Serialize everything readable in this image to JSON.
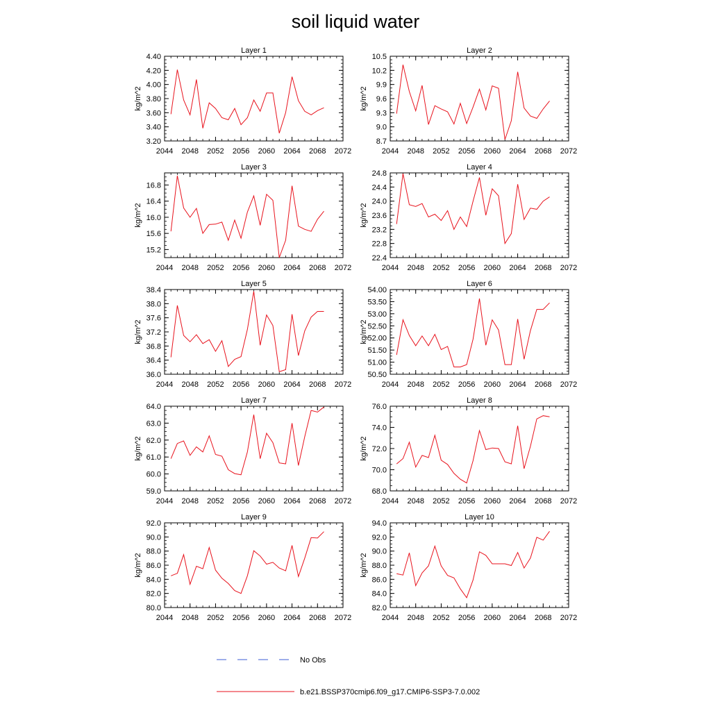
{
  "title": "soil liquid water",
  "colors": {
    "model": "#e8121c",
    "obs": "#3b5bd6",
    "axis": "#000000"
  },
  "legend": {
    "obs_label": "No Obs",
    "model_label": "b.e21.BSSP370cmip6.f09_g17.CMIP6-SSP3-7.0.002"
  },
  "chart_data": [
    {
      "type": "line",
      "title": "Layer 1",
      "ylabel": "kg/m^2",
      "xlim": [
        2044,
        2072
      ],
      "xticks": [
        2044,
        2048,
        2052,
        2056,
        2060,
        2064,
        2068,
        2072
      ],
      "ylim": [
        3.2,
        4.4
      ],
      "yticks": [
        "3.20",
        "3.40",
        "3.60",
        "3.80",
        "4.00",
        "4.20",
        "4.40"
      ],
      "x": [
        2045,
        2046,
        2047,
        2048,
        2049,
        2050,
        2051,
        2052,
        2053,
        2054,
        2055,
        2056,
        2057,
        2058,
        2059,
        2060,
        2061,
        2062,
        2063,
        2064,
        2065,
        2066,
        2067,
        2068,
        2069
      ],
      "series": [
        {
          "values": [
            3.58,
            4.21,
            3.78,
            3.57,
            4.07,
            3.38,
            3.74,
            3.66,
            3.53,
            3.5,
            3.66,
            3.43,
            3.53,
            3.78,
            3.62,
            3.88,
            3.88,
            3.31,
            3.6,
            4.11,
            3.77,
            3.62,
            3.57,
            3.63,
            3.67
          ]
        }
      ]
    },
    {
      "type": "line",
      "title": "Layer 2",
      "ylabel": "kg/m^2",
      "xlim": [
        2044,
        2072
      ],
      "xticks": [
        2044,
        2048,
        2052,
        2056,
        2060,
        2064,
        2068,
        2072
      ],
      "ylim": [
        8.7,
        10.5
      ],
      "yticks": [
        "8.7",
        "9.0",
        "9.3",
        "9.6",
        "9.9",
        "10.2",
        "10.5"
      ],
      "x": [
        2045,
        2046,
        2047,
        2048,
        2049,
        2050,
        2051,
        2052,
        2053,
        2054,
        2055,
        2056,
        2057,
        2058,
        2059,
        2060,
        2061,
        2062,
        2063,
        2064,
        2065,
        2066,
        2067,
        2068,
        2069
      ],
      "series": [
        {
          "values": [
            9.28,
            10.32,
            9.75,
            9.34,
            9.88,
            9.05,
            9.45,
            9.38,
            9.32,
            9.06,
            9.5,
            9.07,
            9.42,
            9.8,
            9.36,
            9.87,
            9.82,
            8.73,
            9.13,
            10.17,
            9.4,
            9.23,
            9.18,
            9.38,
            9.55
          ]
        }
      ]
    },
    {
      "type": "line",
      "title": "Layer 3",
      "ylabel": "kg/m^2",
      "xlim": [
        2044,
        2072
      ],
      "xticks": [
        2044,
        2048,
        2052,
        2056,
        2060,
        2064,
        2068,
        2072
      ],
      "ylim": [
        15.0,
        17.1
      ],
      "yticks": [
        "15.2",
        "15.6",
        "16.0",
        "16.4",
        "16.8"
      ],
      "x": [
        2045,
        2046,
        2047,
        2048,
        2049,
        2050,
        2051,
        2052,
        2053,
        2054,
        2055,
        2056,
        2057,
        2058,
        2059,
        2060,
        2061,
        2062,
        2063,
        2064,
        2065,
        2066,
        2067,
        2068,
        2069
      ],
      "series": [
        {
          "values": [
            15.65,
            17.03,
            16.23,
            16.0,
            16.22,
            15.6,
            15.82,
            15.83,
            15.88,
            15.43,
            15.93,
            15.48,
            16.13,
            16.53,
            15.8,
            16.57,
            16.42,
            15.0,
            15.43,
            16.78,
            15.78,
            15.7,
            15.65,
            15.95,
            16.15
          ]
        }
      ]
    },
    {
      "type": "line",
      "title": "Layer 4",
      "ylabel": "kg/m^2",
      "xlim": [
        2044,
        2072
      ],
      "xticks": [
        2044,
        2048,
        2052,
        2056,
        2060,
        2064,
        2068,
        2072
      ],
      "ylim": [
        22.4,
        24.8
      ],
      "yticks": [
        "22.4",
        "22.8",
        "23.2",
        "23.6",
        "24.0",
        "24.4",
        "24.8"
      ],
      "x": [
        2045,
        2046,
        2047,
        2048,
        2049,
        2050,
        2051,
        2052,
        2053,
        2054,
        2055,
        2056,
        2057,
        2058,
        2059,
        2060,
        2061,
        2062,
        2063,
        2064,
        2065,
        2066,
        2067,
        2068,
        2069
      ],
      "series": [
        {
          "values": [
            23.35,
            24.78,
            23.9,
            23.85,
            23.93,
            23.55,
            23.63,
            23.45,
            23.73,
            23.2,
            23.55,
            23.28,
            24.0,
            24.67,
            23.6,
            24.35,
            24.15,
            22.8,
            23.08,
            24.48,
            23.48,
            23.8,
            23.77,
            24.0,
            24.12
          ]
        }
      ]
    },
    {
      "type": "line",
      "title": "Layer 5",
      "ylabel": "kg/m^2",
      "xlim": [
        2044,
        2072
      ],
      "xticks": [
        2044,
        2048,
        2052,
        2056,
        2060,
        2064,
        2068,
        2072
      ],
      "ylim": [
        36.0,
        38.4
      ],
      "yticks": [
        "36.0",
        "36.4",
        "36.8",
        "37.2",
        "37.6",
        "38.0",
        "38.4"
      ],
      "x": [
        2045,
        2046,
        2047,
        2048,
        2049,
        2050,
        2051,
        2052,
        2053,
        2054,
        2055,
        2056,
        2057,
        2058,
        2059,
        2060,
        2061,
        2062,
        2063,
        2064,
        2065,
        2066,
        2067,
        2068,
        2069
      ],
      "series": [
        {
          "values": [
            36.48,
            37.95,
            37.1,
            36.92,
            37.12,
            36.87,
            36.98,
            36.65,
            36.95,
            36.22,
            36.42,
            36.5,
            37.27,
            38.35,
            36.82,
            37.68,
            37.38,
            36.07,
            36.13,
            37.7,
            36.53,
            37.23,
            37.62,
            37.78,
            37.78
          ]
        }
      ]
    },
    {
      "type": "line",
      "title": "Layer 6",
      "ylabel": "kg/m^2",
      "xlim": [
        2044,
        2072
      ],
      "xticks": [
        2044,
        2048,
        2052,
        2056,
        2060,
        2064,
        2068,
        2072
      ],
      "ylim": [
        50.5,
        54.0
      ],
      "yticks": [
        "50.50",
        "51.00",
        "51.50",
        "52.00",
        "52.50",
        "53.00",
        "53.50",
        "54.00"
      ],
      "x": [
        2045,
        2046,
        2047,
        2048,
        2049,
        2050,
        2051,
        2052,
        2053,
        2054,
        2055,
        2056,
        2057,
        2058,
        2059,
        2060,
        2061,
        2062,
        2063,
        2064,
        2065,
        2066,
        2067,
        2068,
        2069
      ],
      "series": [
        {
          "values": [
            51.3,
            52.75,
            52.1,
            51.68,
            52.08,
            51.68,
            52.15,
            51.52,
            51.65,
            50.8,
            50.8,
            50.9,
            51.95,
            53.63,
            51.7,
            52.75,
            52.33,
            50.9,
            50.9,
            52.78,
            51.12,
            52.3,
            53.18,
            53.18,
            53.45
          ]
        }
      ]
    },
    {
      "type": "line",
      "title": "Layer 7",
      "ylabel": "kg/m^2",
      "xlim": [
        2044,
        2072
      ],
      "xticks": [
        2044,
        2048,
        2052,
        2056,
        2060,
        2064,
        2068,
        2072
      ],
      "ylim": [
        59.0,
        64.0
      ],
      "yticks": [
        "59.0",
        "60.0",
        "61.0",
        "62.0",
        "63.0",
        "64.0"
      ],
      "x": [
        2045,
        2046,
        2047,
        2048,
        2049,
        2050,
        2051,
        2052,
        2053,
        2054,
        2055,
        2056,
        2057,
        2058,
        2059,
        2060,
        2061,
        2062,
        2063,
        2064,
        2065,
        2066,
        2067,
        2068,
        2069
      ],
      "series": [
        {
          "values": [
            60.9,
            61.8,
            61.95,
            61.1,
            61.6,
            61.3,
            62.25,
            61.15,
            61.05,
            60.25,
            60.02,
            59.95,
            61.3,
            63.5,
            60.9,
            62.4,
            61.85,
            60.65,
            60.6,
            63.0,
            60.5,
            62.2,
            63.75,
            63.65,
            63.95
          ]
        }
      ]
    },
    {
      "type": "line",
      "title": "Layer 8",
      "ylabel": "kg/m^2",
      "xlim": [
        2044,
        2072
      ],
      "xticks": [
        2044,
        2048,
        2052,
        2056,
        2060,
        2064,
        2068,
        2072
      ],
      "ylim": [
        68.0,
        76.0
      ],
      "yticks": [
        "68.0",
        "70.0",
        "72.0",
        "74.0",
        "76.0"
      ],
      "x": [
        2045,
        2046,
        2047,
        2048,
        2049,
        2050,
        2051,
        2052,
        2053,
        2054,
        2055,
        2056,
        2057,
        2058,
        2059,
        2060,
        2061,
        2062,
        2063,
        2064,
        2065,
        2066,
        2067,
        2068,
        2069
      ],
      "series": [
        {
          "values": [
            70.55,
            71.05,
            72.6,
            70.25,
            71.35,
            71.15,
            73.25,
            70.9,
            70.5,
            69.65,
            69.1,
            68.75,
            70.85,
            73.7,
            71.9,
            72.05,
            72.0,
            70.75,
            70.55,
            74.15,
            70.1,
            72.2,
            74.8,
            75.1,
            75.0
          ]
        }
      ]
    },
    {
      "type": "line",
      "title": "Layer 9",
      "ylabel": "kg/m^2",
      "xlim": [
        2044,
        2072
      ],
      "xticks": [
        2044,
        2048,
        2052,
        2056,
        2060,
        2064,
        2068,
        2072
      ],
      "ylim": [
        80.0,
        92.0
      ],
      "yticks": [
        "80.0",
        "82.0",
        "84.0",
        "86.0",
        "88.0",
        "90.0",
        "92.0"
      ],
      "x": [
        2045,
        2046,
        2047,
        2048,
        2049,
        2050,
        2051,
        2052,
        2053,
        2054,
        2055,
        2056,
        2057,
        2058,
        2059,
        2060,
        2061,
        2062,
        2063,
        2064,
        2065,
        2066,
        2067,
        2068,
        2069
      ],
      "series": [
        {
          "values": [
            84.5,
            84.85,
            87.5,
            83.3,
            85.85,
            85.5,
            88.5,
            85.3,
            84.15,
            83.4,
            82.4,
            82.0,
            84.5,
            88.05,
            87.3,
            86.15,
            86.4,
            85.6,
            85.2,
            88.8,
            84.4,
            87.0,
            89.9,
            89.85,
            90.75
          ]
        }
      ]
    },
    {
      "type": "line",
      "title": "Layer 10",
      "ylabel": "kg/m^2",
      "xlim": [
        2044,
        2072
      ],
      "xticks": [
        2044,
        2048,
        2052,
        2056,
        2060,
        2064,
        2068,
        2072
      ],
      "ylim": [
        82.0,
        94.0
      ],
      "yticks": [
        "82.0",
        "84.0",
        "86.0",
        "88.0",
        "90.0",
        "92.0",
        "94.0"
      ],
      "x": [
        2045,
        2046,
        2047,
        2048,
        2049,
        2050,
        2051,
        2052,
        2053,
        2054,
        2055,
        2056,
        2057,
        2058,
        2059,
        2060,
        2061,
        2062,
        2063,
        2064,
        2065,
        2066,
        2067,
        2068,
        2069
      ],
      "series": [
        {
          "values": [
            86.8,
            86.6,
            89.75,
            85.1,
            86.9,
            87.9,
            90.7,
            87.9,
            86.55,
            86.2,
            84.65,
            83.4,
            85.9,
            89.9,
            89.4,
            88.2,
            88.2,
            88.2,
            87.95,
            89.8,
            87.6,
            89.0,
            91.95,
            91.55,
            92.8
          ]
        }
      ]
    }
  ]
}
